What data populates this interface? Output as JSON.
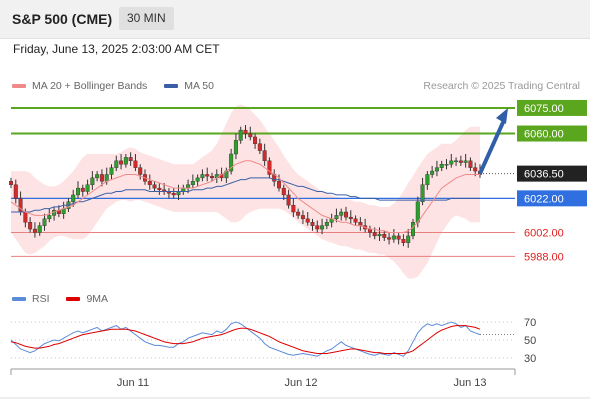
{
  "header": {
    "title": "S&P 500 (CME)",
    "timeframe": "30 MIN",
    "datetime": "Friday, June 13, 2025 2:03:00 AM CET"
  },
  "legend": {
    "ma20_label": "MA 20 + Bollinger Bands",
    "ma20_color": "#f08a8a",
    "ma50_label": "MA 50",
    "ma50_color": "#3a5fa8",
    "rsi_label": "RSI",
    "rsi_color": "#5b8bd9",
    "rsi_ma_label": "9MA",
    "rsi_ma_color": "#dd0000"
  },
  "credit": "Research © 2025 Trading Central",
  "chart_data": {
    "type": "candlestick",
    "ylim": [
      5980,
      6082
    ],
    "x_ticks": [
      "Jun 11",
      "Jun 12",
      "Jun 13"
    ],
    "price_levels": [
      {
        "value": 6075.0,
        "label": "6075.00",
        "style": "resistance-green"
      },
      {
        "value": 6060.0,
        "label": "6060.00",
        "style": "resistance-green"
      },
      {
        "value": 6036.5,
        "label": "6036.50",
        "style": "current-price"
      },
      {
        "value": 6022.0,
        "label": "6022.00",
        "style": "pivot-blue"
      },
      {
        "value": 6002.0,
        "label": "6002.00",
        "style": "support-red"
      },
      {
        "value": 5988.0,
        "label": "5988.00",
        "style": "support-red"
      }
    ],
    "arrow": {
      "from": 6036.5,
      "to": 6075,
      "direction": "up"
    },
    "closes": [
      6030,
      6022,
      6014,
      6008,
      6004,
      6002,
      6006,
      6010,
      6012,
      6015,
      6013,
      6016,
      6020,
      6024,
      6028,
      6026,
      6030,
      6034,
      6036,
      6032,
      6036,
      6040,
      6044,
      6042,
      6046,
      6044,
      6040,
      6036,
      6032,
      6030,
      6028,
      6027,
      6026,
      6025,
      6024,
      6026,
      6028,
      6030,
      6032,
      6034,
      6036,
      6035,
      6034,
      6036,
      6034,
      6038,
      6048,
      6056,
      6062,
      6060,
      6058,
      6054,
      6050,
      6044,
      6036,
      6032,
      6028,
      6024,
      6018,
      6014,
      6012,
      6010,
      6008,
      6006,
      6004,
      6006,
      6008,
      6010,
      6012,
      6014,
      6011,
      6010,
      6008,
      6006,
      6004,
      6002,
      6000,
      6001,
      5999,
      5998,
      6000,
      5998,
      5996,
      6000,
      6008,
      6020,
      6030,
      6036,
      6038,
      6040,
      6042,
      6042,
      6044,
      6044,
      6043,
      6044,
      6040,
      6038,
      6036
    ],
    "ma20": [
      6020,
      6018,
      6016,
      6014,
      6013,
      6012,
      6012,
      6012,
      6013,
      6014,
      6015,
      6016,
      6017,
      6018,
      6020,
      6022,
      6024,
      6026,
      6028,
      6030,
      6032,
      6033,
      6034,
      6035,
      6036,
      6036,
      6036,
      6035,
      6034,
      6033,
      6032,
      6031,
      6030,
      6029,
      6028,
      6028,
      6028,
      6028,
      6028,
      6029,
      6030,
      6031,
      6032,
      6034,
      6036,
      6038,
      6040,
      6042,
      6043,
      6044,
      6044,
      6043,
      6042,
      6040,
      6038,
      6036,
      6034,
      6031,
      6028,
      6025,
      6022,
      6020,
      6018,
      6016,
      6014,
      6012,
      6011,
      6010,
      6009,
      6008,
      6008,
      6007,
      6006,
      6006,
      6005,
      6004,
      6004,
      6003,
      6003,
      6002,
      6002,
      6002,
      6002,
      6003,
      6005,
      6008,
      6012,
      6016,
      6020,
      6024,
      6028,
      6030,
      6032,
      6034,
      6035,
      6036,
      6036,
      6036,
      6036
    ],
    "ma50": [
      6014,
      6014,
      6014,
      6014,
      6014,
      6015,
      6015,
      6016,
      6016,
      6017,
      6017,
      6018,
      6018,
      6019,
      6020,
      6020,
      6021,
      6022,
      6023,
      6024,
      6025,
      6025,
      6026,
      6026,
      6027,
      6027,
      6027,
      6027,
      6027,
      6026,
      6026,
      6026,
      6026,
      6026,
      6026,
      6026,
      6026,
      6026,
      6027,
      6027,
      6027,
      6028,
      6028,
      6029,
      6029,
      6030,
      6031,
      6032,
      6033,
      6033,
      6034,
      6034,
      6034,
      6034,
      6034,
      6033,
      6033,
      6032,
      6031,
      6030,
      6029,
      6029,
      6028,
      6027,
      6026,
      6026,
      6025,
      6025,
      6024,
      6024,
      6024,
      6023,
      6023,
      6022,
      6022,
      6022,
      6022,
      6021,
      6021,
      6021,
      6021,
      6021,
      6021,
      6021,
      6021,
      6021,
      6021,
      6021,
      6021,
      6021,
      6021,
      6021,
      6022,
      6022,
      6022,
      6022,
      6022,
      6022,
      6022
    ],
    "band_width": [
      18,
      20,
      22,
      24,
      24,
      22,
      20,
      18,
      16,
      15,
      15,
      16,
      18,
      20,
      22,
      24,
      24,
      22,
      20,
      18,
      16,
      15,
      14,
      14,
      15,
      16,
      15,
      14,
      14,
      14,
      14,
      14,
      14,
      14,
      14,
      14,
      14,
      14,
      14,
      15,
      16,
      17,
      18,
      20,
      24,
      28,
      32,
      34,
      34,
      32,
      30,
      28,
      26,
      24,
      22,
      20,
      18,
      16,
      15,
      14,
      14,
      14,
      14,
      14,
      14,
      14,
      14,
      14,
      14,
      14,
      14,
      14,
      14,
      14,
      14,
      14,
      14,
      14,
      14,
      15,
      17,
      20,
      24,
      28,
      30,
      32,
      32,
      32,
      30,
      28,
      26,
      24,
      22,
      22,
      24,
      26,
      28,
      28,
      28
    ],
    "rsi": [
      50,
      45,
      40,
      38,
      36,
      38,
      42,
      46,
      48,
      50,
      49,
      52,
      55,
      58,
      60,
      58,
      60,
      62,
      64,
      60,
      62,
      64,
      66,
      62,
      64,
      60,
      56,
      52,
      48,
      46,
      44,
      44,
      43,
      42,
      42,
      46,
      48,
      52,
      54,
      56,
      58,
      57,
      56,
      60,
      58,
      62,
      68,
      70,
      68,
      64,
      60,
      56,
      52,
      46,
      42,
      40,
      38,
      36,
      34,
      33,
      34,
      35,
      34,
      33,
      32,
      35,
      38,
      40,
      44,
      48,
      44,
      42,
      40,
      38,
      36,
      34,
      33,
      35,
      34,
      33,
      36,
      34,
      32,
      38,
      48,
      58,
      64,
      68,
      66,
      68,
      66,
      68,
      70,
      68,
      64,
      66,
      60,
      58,
      56
    ],
    "rsi_ma": [
      48,
      47,
      45,
      43,
      42,
      41,
      41,
      42,
      43,
      45,
      46,
      48,
      50,
      52,
      54,
      56,
      57,
      58,
      59,
      60,
      61,
      62,
      62,
      62,
      62,
      61,
      60,
      58,
      56,
      54,
      52,
      50,
      48,
      47,
      46,
      46,
      46,
      47,
      48,
      50,
      52,
      53,
      54,
      55,
      56,
      58,
      60,
      62,
      63,
      63,
      62,
      60,
      58,
      56,
      54,
      51,
      48,
      46,
      44,
      42,
      40,
      38,
      37,
      36,
      35,
      35,
      35,
      36,
      37,
      38,
      39,
      40,
      40,
      39,
      38,
      37,
      36,
      36,
      35,
      35,
      35,
      35,
      35,
      36,
      38,
      42,
      46,
      50,
      54,
      58,
      61,
      63,
      65,
      66,
      66,
      66,
      65,
      64,
      62
    ],
    "rsi_levels": [
      "70",
      "50",
      "30"
    ]
  }
}
